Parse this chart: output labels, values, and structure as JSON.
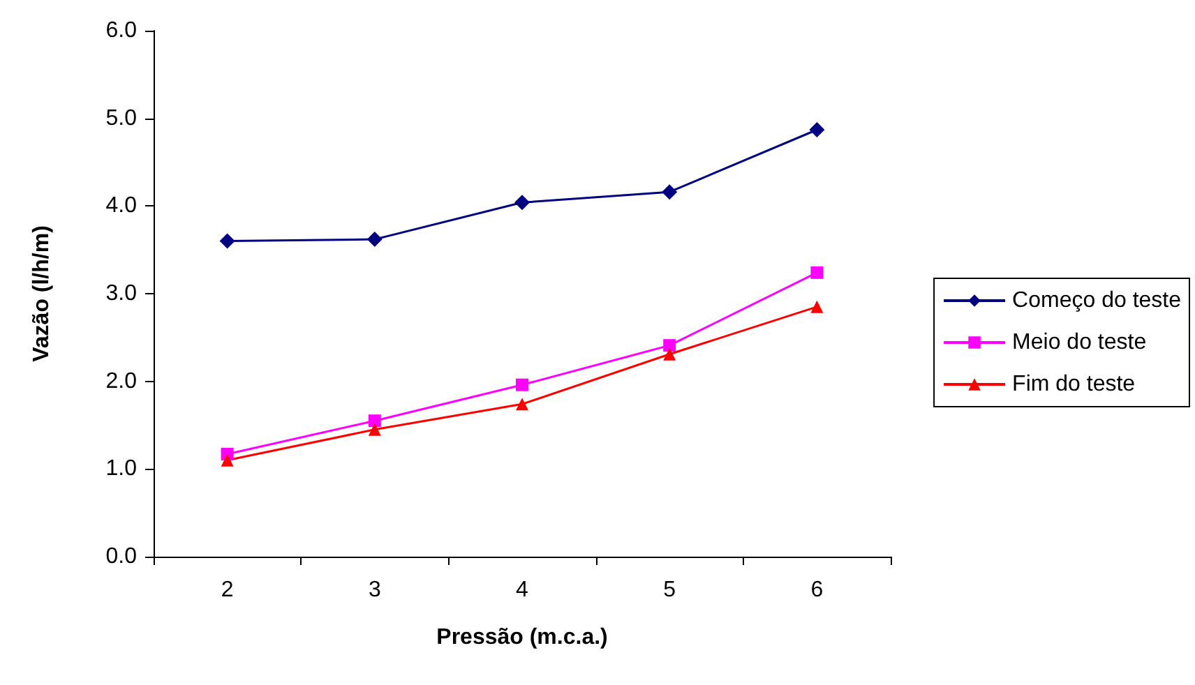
{
  "chart_data": {
    "type": "line",
    "xlabel": "Pressão (m.c.a.)",
    "ylabel": "Vazão (l/h/m)",
    "categories": [
      "2",
      "3",
      "4",
      "5",
      "6"
    ],
    "series": [
      {
        "name": "Começo do teste",
        "color": "#000080",
        "marker": "diamond",
        "values": [
          3.6,
          3.62,
          4.04,
          4.16,
          4.87
        ]
      },
      {
        "name": "Meio do teste",
        "color": "#ff00ff",
        "marker": "square",
        "values": [
          1.17,
          1.55,
          1.96,
          2.41,
          3.24
        ]
      },
      {
        "name": "Fim do teste",
        "color": "#ff0000",
        "marker": "triangle",
        "values": [
          1.1,
          1.45,
          1.74,
          2.31,
          2.85
        ]
      }
    ],
    "ylim": [
      0,
      6
    ],
    "yticks": [
      {
        "value": 0,
        "label": "0.0"
      },
      {
        "value": 1,
        "label": "1.0"
      },
      {
        "value": 2,
        "label": "2.0"
      },
      {
        "value": 3,
        "label": "3.0"
      },
      {
        "value": 4,
        "label": "4.0"
      },
      {
        "value": 5,
        "label": "5.0"
      },
      {
        "value": 6,
        "label": "6.0"
      }
    ],
    "grid": false,
    "legend": "right"
  }
}
